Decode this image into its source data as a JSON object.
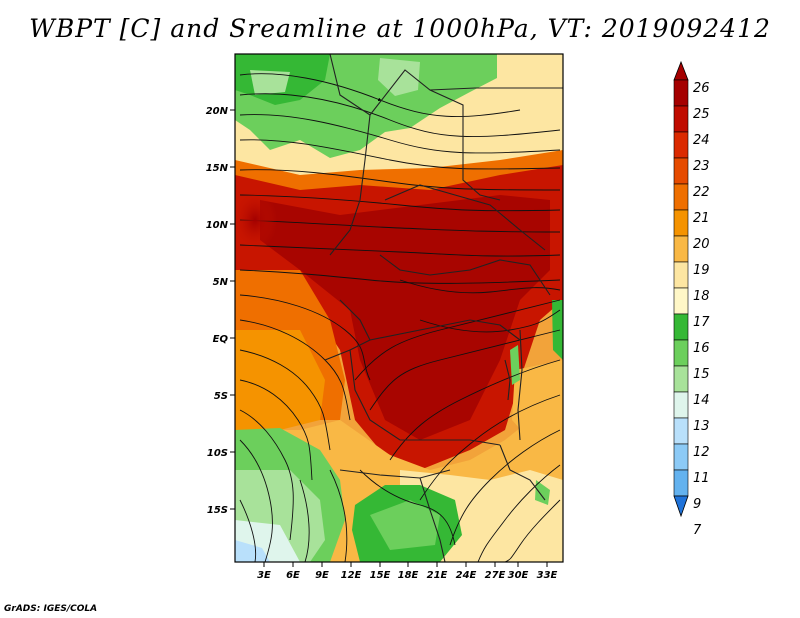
{
  "title": "WBPT [C] and Sreamline at 1000hPa, VT: 2019092412",
  "credit": "GrADS: IGES/COLA",
  "map": {
    "lat_labels": [
      "20N",
      "15N",
      "10N",
      "5N",
      "EQ",
      "5S",
      "10S",
      "15S"
    ],
    "lat_values": [
      20,
      15,
      10,
      5,
      0,
      -5,
      -10,
      -15
    ],
    "lon_labels": [
      "3E",
      "6E",
      "9E",
      "12E",
      "15E",
      "18E",
      "21E",
      "24E",
      "27E",
      "30E",
      "33E"
    ],
    "lon_values": [
      3,
      6,
      9,
      12,
      15,
      18,
      21,
      24,
      27,
      30,
      33
    ],
    "lat_range": [
      -19.5,
      24.5
    ],
    "lon_range": [
      0.5,
      34.5
    ]
  },
  "colorbar": {
    "labels": [
      "26",
      "25",
      "24",
      "23",
      "22",
      "21",
      "20",
      "19",
      "18",
      "17",
      "16",
      "15",
      "14",
      "13",
      "12",
      "11",
      "9",
      "7"
    ],
    "colors": [
      "#a50000",
      "#c00c00",
      "#db2a00",
      "#e64b00",
      "#ef6f00",
      "#f59300",
      "#f9b845",
      "#fde6a2",
      "#fff7c7",
      "#35b835",
      "#6ccf5c",
      "#a8e29a",
      "#dff5ec",
      "#b9e0fb",
      "#8ccaf6",
      "#63b2ef",
      "#3d97e6",
      "#1f73da"
    ]
  }
}
